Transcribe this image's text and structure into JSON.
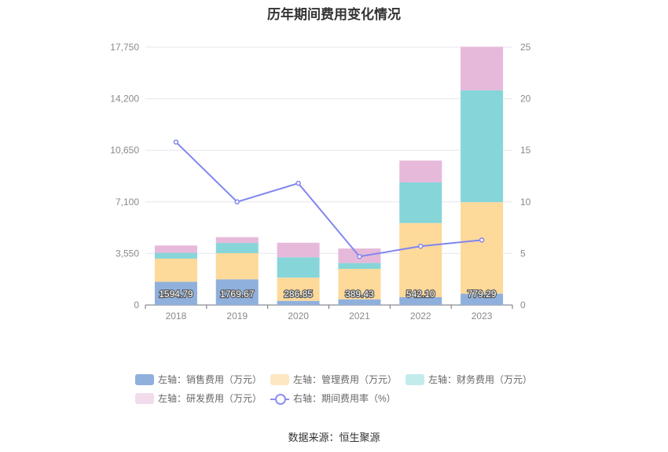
{
  "title": "历年期间费用变化情况",
  "source": "数据来源：恒生聚源",
  "chart_data": {
    "type": "bar",
    "stacked": true,
    "categories": [
      "2018",
      "2019",
      "2020",
      "2021",
      "2022",
      "2023"
    ],
    "left_axis": {
      "ticks": [
        "0",
        "3,550",
        "7,100",
        "10,650",
        "14,200",
        "17,750"
      ],
      "range": [
        0,
        17750
      ]
    },
    "right_axis": {
      "ticks": [
        "0",
        "5",
        "10",
        "15",
        "20",
        "25"
      ],
      "range": [
        0,
        25
      ]
    },
    "series": [
      {
        "name": "左轴：销售费用（万元）",
        "color": "#8fb0dc",
        "values": [
          1594.79,
          1769.67,
          286.85,
          389.43,
          542.1,
          779.29
        ],
        "labels": [
          "1594.79",
          "1769.67",
          "286.85",
          "389.43",
          "542.10",
          "779.29"
        ]
      },
      {
        "name": "左轴：管理费用（万元）",
        "color": "#fdd99a",
        "values": [
          1600,
          1800,
          1600,
          2100,
          5100,
          6300
        ]
      },
      {
        "name": "左轴：财务费用（万元）",
        "color": "#86d5d9",
        "values": [
          400,
          700,
          1400,
          400,
          2800,
          7700
        ]
      },
      {
        "name": "左轴：研发费用（万元）",
        "color": "#e6b9da",
        "values": [
          500,
          400,
          1000,
          1000,
          1500,
          3000
        ]
      }
    ],
    "line_series": {
      "name": "右轴：期间费用率（%）",
      "color": "#8086ee",
      "values": [
        15.8,
        10.0,
        11.8,
        4.7,
        5.7,
        6.3
      ]
    },
    "legend_position": "bottom",
    "grid": true
  }
}
